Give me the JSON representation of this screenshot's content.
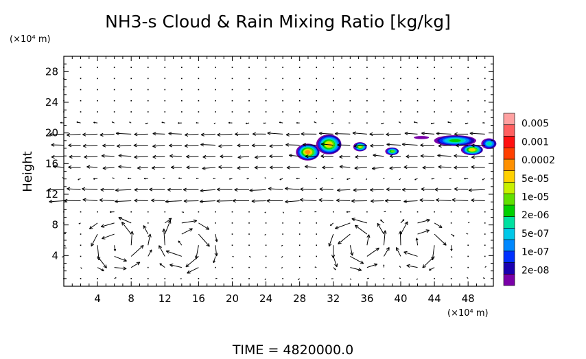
{
  "chart_data": {
    "type": "heatmap",
    "title": "NH3-s Cloud & Rain Mixing Ratio [kg/kg]",
    "ylabel": "Height",
    "yunit": "(×10⁴ m)",
    "xunit": "(×10⁴ m)",
    "xlim": [
      0,
      51
    ],
    "ylim": [
      0,
      30
    ],
    "xticks": [
      "4",
      "8",
      "12",
      "16",
      "20",
      "24",
      "28",
      "32",
      "36",
      "40",
      "44",
      "48"
    ],
    "xtick_values": [
      4,
      8,
      12,
      16,
      20,
      24,
      28,
      32,
      36,
      40,
      44,
      48
    ],
    "yticks": [
      "4",
      "8",
      "12",
      "16",
      "20",
      "24",
      "28"
    ],
    "ytick_values": [
      4,
      8,
      12,
      16,
      20,
      24,
      28
    ],
    "colorbar": {
      "labels": [
        "0.005",
        "0.001",
        "0.0002",
        "5e-05",
        "1e-05",
        "2e-06",
        "5e-07",
        "1e-07",
        "2e-08"
      ],
      "colors": [
        "#7a00a8",
        "#1a00b0",
        "#0030ff",
        "#0088ff",
        "#00c8e8",
        "#00e0a0",
        "#00d000",
        "#60e000",
        "#c8f000",
        "#ffd000",
        "#ff9000",
        "#ff4000",
        "#ff1010",
        "#ff6060",
        "#ffa0a0"
      ]
    },
    "clouds": [
      {
        "x": 29.0,
        "y": 17.5,
        "rx": 1.4,
        "ry": 1.1,
        "level": 10
      },
      {
        "x": 31.5,
        "y": 18.5,
        "rx": 1.5,
        "ry": 1.3,
        "level": 9
      },
      {
        "x": 35.2,
        "y": 18.2,
        "rx": 0.8,
        "ry": 0.6,
        "level": 8
      },
      {
        "x": 39.0,
        "y": 17.6,
        "rx": 0.8,
        "ry": 0.5,
        "level": 7
      },
      {
        "x": 46.5,
        "y": 19.0,
        "rx": 2.5,
        "ry": 0.7,
        "level": 6
      },
      {
        "x": 48.5,
        "y": 17.8,
        "rx": 1.3,
        "ry": 0.7,
        "level": 9
      },
      {
        "x": 50.5,
        "y": 18.6,
        "rx": 0.9,
        "ry": 0.7,
        "level": 5
      },
      {
        "x": 42.5,
        "y": 19.4,
        "rx": 0.9,
        "ry": 0.2,
        "level": 0
      }
    ],
    "vortices": [
      {
        "x": 6.5,
        "y": 5.5,
        "r": 4.5,
        "s": 1
      },
      {
        "x": 14.5,
        "y": 5.5,
        "r": 4.5,
        "s": -1
      },
      {
        "x": 35.0,
        "y": 5.5,
        "r": 4.5,
        "s": 1
      },
      {
        "x": 42.5,
        "y": 5.5,
        "r": 4.0,
        "s": -1
      }
    ]
  },
  "footer": {
    "time_label": "TIME  =  4820000.0"
  }
}
